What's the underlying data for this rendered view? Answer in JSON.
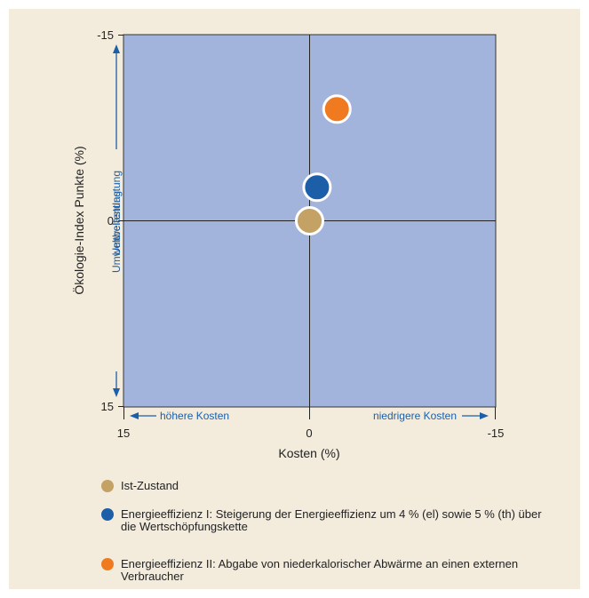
{
  "chart_data": {
    "type": "scatter",
    "xlabel": "Kosten (%)",
    "ylabel": "Ökologie-Index Punkte (%)",
    "xlim": [
      15,
      -15
    ],
    "ylim": [
      15,
      -15
    ],
    "x_ticks": [
      "15",
      "0",
      "-15"
    ],
    "y_ticks": [
      "-15",
      "0",
      "15"
    ],
    "annotations": {
      "up": "Umweltentlastung",
      "down": "Umweltbelastung",
      "left": "höhere Kosten",
      "right": "niedrigere Kosten"
    },
    "grid": false,
    "series": [
      {
        "name": "Ist-Zustand",
        "color": "#c4a164",
        "x": 0,
        "y": 0
      },
      {
        "name": "Energieeffizienz I: Steigerung der Energieeffizienz um 4 % (el) sowie 5 % (th) über die Wertschöpfungskette",
        "color": "#1c5ea8",
        "x": -0.6,
        "y": -2.7
      },
      {
        "name": "Energieeffizienz II: Abgabe von niederkalorischer Abwärme an einen externen Verbraucher",
        "color": "#f07a1f",
        "x": -2.2,
        "y": -9.0
      }
    ]
  },
  "legend": [
    {
      "text": "Ist-Zustand",
      "color": "#c4a164"
    },
    {
      "text": "Energieeffizienz I: Steigerung der Energieeffizienz um 4 % (el) sowie 5 % (th) über die Wertschöpfungskette",
      "color": "#1c5ea8"
    },
    {
      "text": "Energieeffizienz II: Abgabe von niederkalorischer Abwärme an einen externen Verbraucher",
      "color": "#f07a1f"
    }
  ],
  "colors": {
    "plot_bg": "#a3b4dc",
    "annotation": "#1c5ea8",
    "panel_bg": "#f3ecdd"
  }
}
